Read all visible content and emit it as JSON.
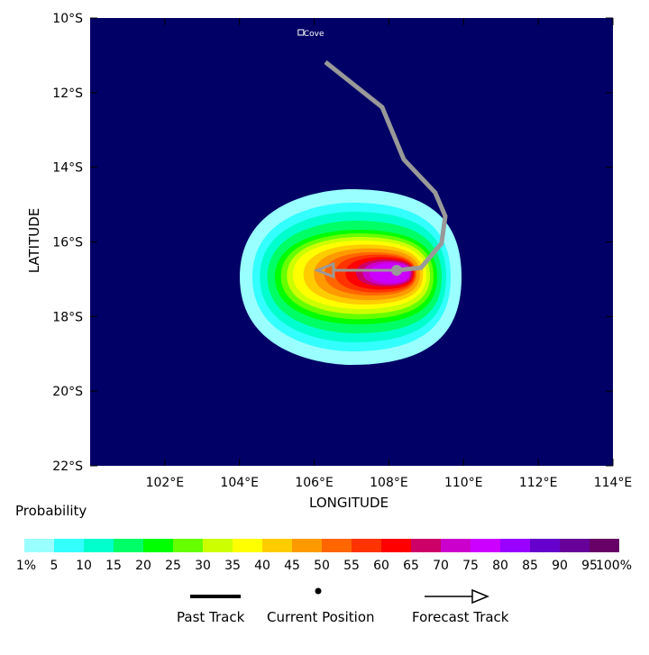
{
  "map": {
    "xlabel": "LONGITUDE",
    "ylabel": "LATITUDE",
    "lon_range": [
      100,
      114
    ],
    "lat_range_south": [
      10,
      22
    ],
    "lon_ticks": [
      "102°E",
      "104°E",
      "106°E",
      "108°E",
      "110°E",
      "112°E",
      "114°E"
    ],
    "lon_tick_values": [
      102,
      104,
      106,
      108,
      110,
      112,
      114
    ],
    "lat_ticks": [
      "10°S",
      "12°S",
      "14°S",
      "16°S",
      "18°S",
      "20°S",
      "22°S"
    ],
    "lat_tick_values": [
      10,
      12,
      14,
      16,
      18,
      20,
      22
    ],
    "background_color": "#000066",
    "place": {
      "name": "Cove",
      "lon": 105.62,
      "lat_south": 10.41
    },
    "past_track": [
      [
        106.3,
        11.18
      ],
      [
        107.82,
        12.39
      ],
      [
        108.4,
        13.79
      ],
      [
        109.24,
        14.68
      ],
      [
        109.51,
        15.31
      ],
      [
        109.41,
        16.04
      ],
      [
        108.86,
        16.69
      ],
      [
        108.21,
        16.76
      ]
    ],
    "current_position": [
      108.21,
      16.76
    ],
    "forecast_track": [
      [
        108.21,
        16.76
      ],
      [
        106.08,
        16.76
      ]
    ],
    "track_color": "#999999",
    "max_level_shown": "70-75%"
  },
  "legend": {
    "title": "Probability",
    "colors": [
      "#99ffff",
      "#33ffff",
      "#00ffcc",
      "#00ff66",
      "#00ff00",
      "#66ff00",
      "#ccff00",
      "#ffff00",
      "#ffcc00",
      "#ff9900",
      "#ff6600",
      "#ff3300",
      "#ff0000",
      "#cc0066",
      "#cc00cc",
      "#cc00ff",
      "#9900ff",
      "#6600cc",
      "#660099",
      "#660066"
    ],
    "labels": [
      "1%",
      "5",
      "10",
      "15",
      "20",
      "25",
      "30",
      "35",
      "40",
      "45",
      "50",
      "55",
      "60",
      "65",
      "70",
      "75",
      "80",
      "85",
      "90",
      "95",
      "100%"
    ],
    "past_track": "Past Track",
    "current_position": "Current Position",
    "forecast_track": "Forecast Track"
  }
}
